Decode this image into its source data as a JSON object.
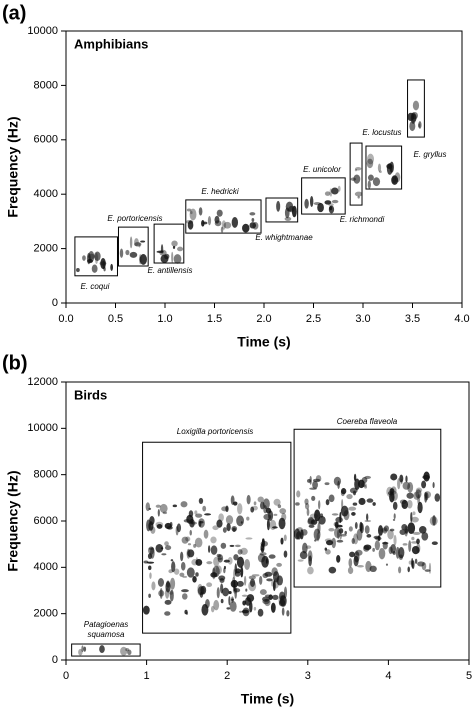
{
  "chart_data": [
    {
      "type": "spectrogram",
      "panel_label": "(a)",
      "title": "Amphibians",
      "x_label": "Time (s)",
      "y_label": "Frequency (Hz)",
      "xlim": [
        0,
        4
      ],
      "ylim": [
        0,
        10000
      ],
      "xticks": [
        {
          "value": 0,
          "label": "0.0"
        },
        {
          "value": 0.5,
          "label": "0.5"
        },
        {
          "value": 1,
          "label": "1.0"
        },
        {
          "value": 1.5,
          "label": "1.5"
        },
        {
          "value": 2,
          "label": "2.0"
        },
        {
          "value": 2.5,
          "label": "2.5"
        },
        {
          "value": 3,
          "label": "3.0"
        },
        {
          "value": 3.5,
          "label": "3.5"
        },
        {
          "value": 4,
          "label": "4.0"
        }
      ],
      "yticks": [
        0,
        2000,
        4000,
        6000,
        8000,
        10000
      ],
      "boxes": [
        {
          "label": "E. coqui",
          "x": [
            0.09,
            0.52
          ],
          "y": [
            1000,
            2430
          ]
        },
        {
          "label": "E. portoricensis",
          "x": [
            0.53,
            0.83
          ],
          "y": [
            1360,
            2790
          ]
        },
        {
          "label": "E. antillensis",
          "x": [
            0.89,
            1.19
          ],
          "y": [
            1470,
            2900
          ]
        },
        {
          "label": "E. hedricki",
          "x": [
            1.21,
            1.97
          ],
          "y": [
            2570,
            3790
          ]
        },
        {
          "label": "E. whightmanae",
          "x": [
            2.02,
            2.34
          ],
          "y": [
            2980,
            3860
          ]
        },
        {
          "label": "E. unicolor",
          "x": [
            2.38,
            2.82
          ],
          "y": [
            3270,
            4600
          ]
        },
        {
          "label": "E. richmondi",
          "x": [
            2.87,
            2.99
          ],
          "y": [
            3600,
            5880
          ]
        },
        {
          "label": "E. locustus",
          "x": [
            3.03,
            3.39
          ],
          "y": [
            4190,
            5770
          ]
        },
        {
          "label": "E. gryllus",
          "x": [
            3.45,
            3.62
          ],
          "y": [
            6100,
            8200
          ]
        }
      ]
    },
    {
      "type": "spectrogram",
      "panel_label": "(b)",
      "title": "Birds",
      "x_label": "Time (s)",
      "y_label": "Frequency (Hz)",
      "xlim": [
        0,
        5
      ],
      "ylim": [
        0,
        12000
      ],
      "xticks": [
        0,
        1,
        2,
        3,
        4,
        5
      ],
      "yticks": [
        0,
        2000,
        4000,
        6000,
        8000,
        10000,
        12000
      ],
      "boxes": [
        {
          "label": "Patagioenas squamosa",
          "x": [
            0.07,
            0.92
          ],
          "y": [
            170,
            690
          ]
        },
        {
          "label": "Loxigilla portoricensis",
          "x": [
            0.95,
            2.79
          ],
          "y": [
            1160,
            9400
          ]
        },
        {
          "label": "Coereba flaveola",
          "x": [
            2.83,
            4.65
          ],
          "y": [
            3150,
            9960
          ]
        }
      ]
    }
  ]
}
